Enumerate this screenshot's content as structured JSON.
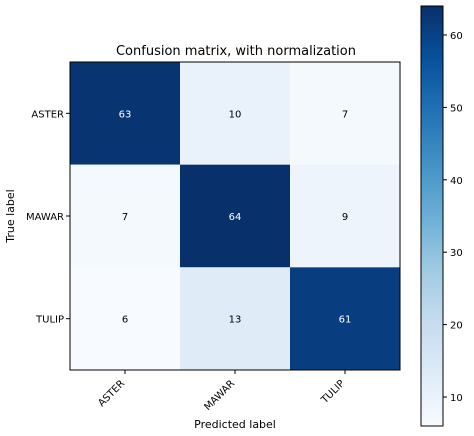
{
  "chart_data": {
    "type": "heatmap",
    "title": "Confusion matrix, with normalization",
    "xlabel": "Predicted label",
    "ylabel": "True label",
    "x_categories": [
      "ASTER",
      "MAWAR",
      "TULIP"
    ],
    "y_categories": [
      "ASTER",
      "MAWAR",
      "TULIP"
    ],
    "values": [
      [
        63,
        10,
        7
      ],
      [
        7,
        64,
        9
      ],
      [
        6,
        13,
        61
      ]
    ],
    "colorbar": {
      "range": [
        6,
        64
      ],
      "ticks": [
        10,
        20,
        30,
        40,
        50,
        60
      ],
      "colormap": "Blues"
    },
    "grid": false
  }
}
